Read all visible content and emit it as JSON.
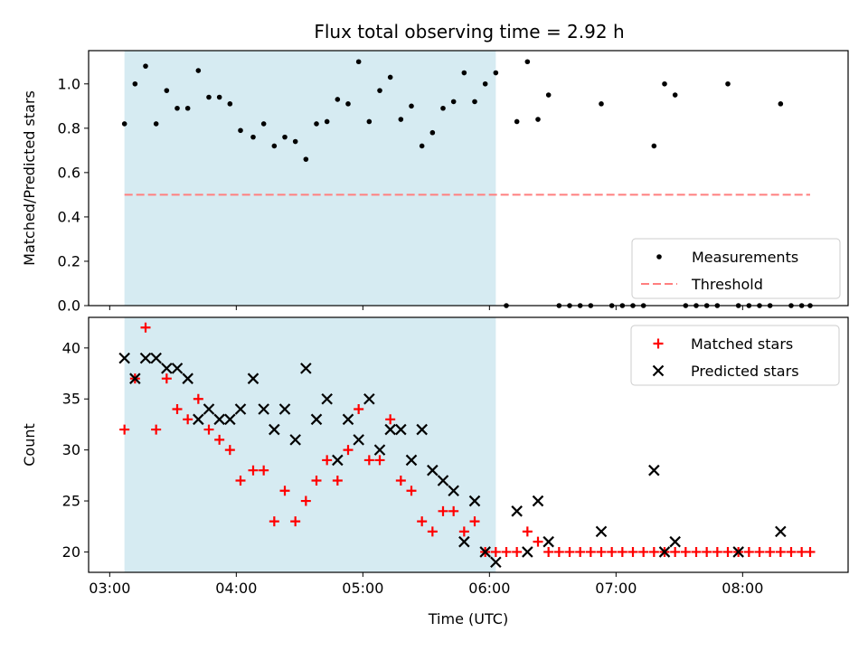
{
  "title": "Flux total observing time = 2.92 h",
  "colors": {
    "shade": "#add8e6",
    "measurement": "#000000",
    "threshold": "#ff7f7f",
    "matched": "#ff0000",
    "predicted": "#000000"
  },
  "chart_data": [
    {
      "type": "scatter",
      "panel": "top",
      "ylabel": "Matched/Predicted stars",
      "ylim": [
        0,
        1.15
      ],
      "yticks": [
        0.0,
        0.2,
        0.4,
        0.6,
        0.8,
        1.0
      ],
      "ytick_labels": [
        "0.0",
        "0.2",
        "0.4",
        "0.6",
        "0.8",
        "1.0"
      ],
      "xlim": [
        "02:50",
        "08:50"
      ],
      "shaded_span": [
        "03:07",
        "06:03"
      ],
      "threshold": {
        "value": 0.5,
        "x_range": [
          "03:07",
          "08:32"
        ]
      },
      "legend_position": "lower-right",
      "legend": [
        "Measurements",
        "Threshold"
      ],
      "series": [
        {
          "name": "Measurements",
          "marker": "dot",
          "x": [
            "03:07",
            "03:12",
            "03:17",
            "03:22",
            "03:27",
            "03:32",
            "03:37",
            "03:42",
            "03:47",
            "03:52",
            "03:57",
            "04:02",
            "04:08",
            "04:13",
            "04:18",
            "04:23",
            "04:28",
            "04:33",
            "04:38",
            "04:43",
            "04:48",
            "04:53",
            "04:58",
            "05:03",
            "05:08",
            "05:13",
            "05:18",
            "05:23",
            "05:28",
            "05:33",
            "05:38",
            "05:43",
            "05:48",
            "05:53",
            "05:58",
            "06:03",
            "06:08",
            "06:13",
            "06:18",
            "06:23",
            "06:28",
            "06:33",
            "06:38",
            "06:43",
            "06:48",
            "06:53",
            "06:58",
            "07:03",
            "07:08",
            "07:13",
            "07:18",
            "07:23",
            "07:28",
            "07:33",
            "07:38",
            "07:43",
            "07:48",
            "07:53",
            "07:58",
            "08:03",
            "08:08",
            "08:13",
            "08:18",
            "08:23",
            "08:28",
            "08:32"
          ],
          "y": [
            0.82,
            1.0,
            1.08,
            0.82,
            0.97,
            0.89,
            0.89,
            1.06,
            0.94,
            0.94,
            0.91,
            0.79,
            0.76,
            0.82,
            0.72,
            0.76,
            0.74,
            0.66,
            0.82,
            0.83,
            0.93,
            0.91,
            1.1,
            0.83,
            0.97,
            1.03,
            0.84,
            0.9,
            0.72,
            0.78,
            0.89,
            0.92,
            1.05,
            0.92,
            1.0,
            1.05,
            0.0,
            0.83,
            1.1,
            0.84,
            0.95,
            0.0,
            0.0,
            0.0,
            0.0,
            0.91,
            0.0,
            0.0,
            0.0,
            0.0,
            0.72,
            1.0,
            0.95,
            0.0,
            0.0,
            0.0,
            0.0,
            1.0,
            0.0,
            0.0,
            0.0,
            0.0,
            0.91,
            0.0,
            0.0,
            0.0
          ]
        }
      ]
    },
    {
      "type": "scatter",
      "panel": "bottom",
      "xlabel": "Time (UTC)",
      "ylabel": "Count",
      "ylim": [
        18,
        43
      ],
      "yticks": [
        20,
        25,
        30,
        35,
        40
      ],
      "ytick_labels": [
        "20",
        "25",
        "30",
        "35",
        "40"
      ],
      "xlim": [
        "02:50",
        "08:50"
      ],
      "xticks": [
        "03:00",
        "04:00",
        "05:00",
        "06:00",
        "07:00",
        "08:00"
      ],
      "xtick_labels": [
        "03:00",
        "04:00",
        "05:00",
        "06:00",
        "07:00",
        "08:00"
      ],
      "shaded_span": [
        "03:07",
        "06:03"
      ],
      "legend_position": "upper-right",
      "legend": [
        "Matched stars",
        "Predicted stars"
      ],
      "series": [
        {
          "name": "Matched stars",
          "marker": "plus",
          "x": [
            "03:07",
            "03:12",
            "03:17",
            "03:22",
            "03:27",
            "03:32",
            "03:37",
            "03:42",
            "03:47",
            "03:52",
            "03:57",
            "04:02",
            "04:08",
            "04:13",
            "04:18",
            "04:23",
            "04:28",
            "04:33",
            "04:38",
            "04:43",
            "04:48",
            "04:53",
            "04:58",
            "05:03",
            "05:08",
            "05:13",
            "05:18",
            "05:23",
            "05:28",
            "05:33",
            "05:38",
            "05:43",
            "05:48",
            "05:53",
            "05:58",
            "06:03",
            "06:08",
            "06:13",
            "06:18",
            "06:23",
            "06:28",
            "06:33",
            "06:38",
            "06:43",
            "06:48",
            "06:53",
            "06:58",
            "07:03",
            "07:08",
            "07:13",
            "07:18",
            "07:23",
            "07:28",
            "07:33",
            "07:38",
            "07:43",
            "07:48",
            "07:53",
            "07:58",
            "08:03",
            "08:08",
            "08:13",
            "08:18",
            "08:23",
            "08:28",
            "08:32"
          ],
          "y": [
            32,
            37,
            42,
            32,
            37,
            34,
            33,
            35,
            32,
            31,
            30,
            27,
            28,
            28,
            23,
            26,
            23,
            25,
            27,
            29,
            27,
            30,
            34,
            29,
            29,
            33,
            27,
            26,
            23,
            22,
            24,
            24,
            22,
            23,
            20,
            20,
            20,
            20,
            22,
            21,
            20,
            20,
            20,
            20,
            20,
            20,
            20,
            20,
            20,
            20,
            20,
            20,
            20,
            20,
            20,
            20,
            20,
            20,
            20,
            20,
            20,
            20,
            20,
            20,
            20,
            20
          ]
        },
        {
          "name": "Predicted stars",
          "marker": "x",
          "x": [
            "03:07",
            "03:12",
            "03:17",
            "03:22",
            "03:27",
            "03:32",
            "03:37",
            "03:42",
            "03:47",
            "03:52",
            "03:57",
            "04:02",
            "04:08",
            "04:13",
            "04:18",
            "04:23",
            "04:28",
            "04:33",
            "04:38",
            "04:43",
            "04:48",
            "04:53",
            "04:58",
            "05:03",
            "05:08",
            "05:13",
            "05:18",
            "05:23",
            "05:28",
            "05:33",
            "05:38",
            "05:43",
            "05:48",
            "05:53",
            "05:58",
            "06:03",
            "06:13",
            "06:18",
            "06:23",
            "06:28",
            "06:53",
            "07:18",
            "07:23",
            "07:28",
            "07:58",
            "08:18"
          ],
          "y": [
            39,
            37,
            39,
            39,
            38,
            38,
            37,
            33,
            34,
            33,
            33,
            34,
            37,
            34,
            32,
            34,
            31,
            38,
            33,
            35,
            29,
            33,
            31,
            35,
            30,
            32,
            32,
            29,
            32,
            28,
            27,
            26,
            21,
            25,
            20,
            19,
            24,
            20,
            25,
            21,
            22,
            28,
            20,
            21,
            20,
            22
          ]
        }
      ]
    }
  ]
}
